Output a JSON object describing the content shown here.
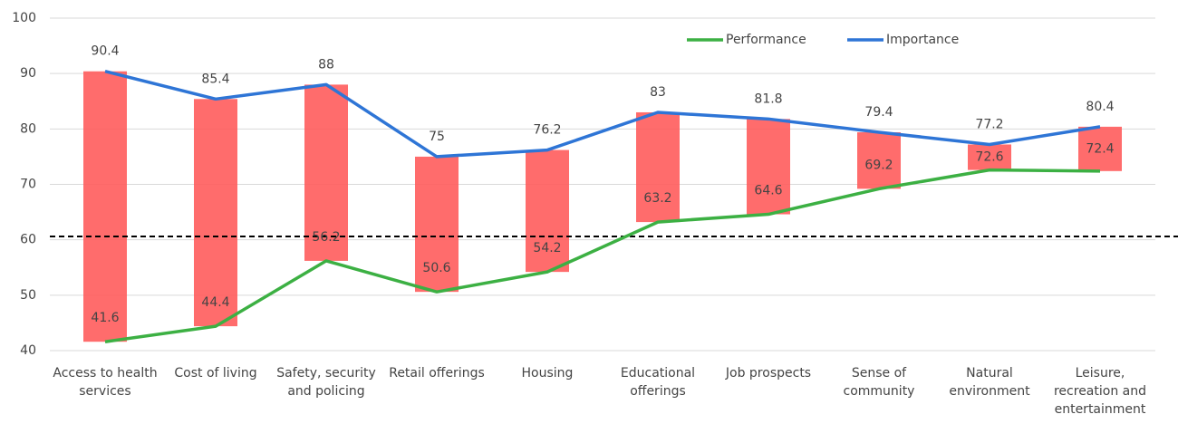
{
  "chart_data": {
    "type": "line",
    "categories": [
      "Access to health services",
      "Cost of living",
      "Safety, security and policing",
      "Retail offerings",
      "Housing",
      "Educational offerings",
      "Job prospects",
      "Sense of community",
      "Natural environment",
      "Leisure, recreation and entertainment"
    ],
    "series": [
      {
        "name": "Performance",
        "color": "#3cb043",
        "values": [
          41.6,
          44.4,
          56.2,
          50.6,
          54.2,
          63.2,
          64.6,
          69.2,
          72.6,
          72.4
        ]
      },
      {
        "name": "Importance",
        "color": "#2e75d6",
        "values": [
          90.4,
          85.4,
          88,
          75,
          76.2,
          83,
          81.8,
          79.4,
          77.2,
          80.4
        ]
      }
    ],
    "gap_bar_color": "#ff5c5c",
    "reference_line": 60.6,
    "ylim": [
      40,
      100
    ],
    "yticks": [
      40,
      50,
      60,
      70,
      80,
      90,
      100
    ],
    "grid": true,
    "legend": "top"
  }
}
